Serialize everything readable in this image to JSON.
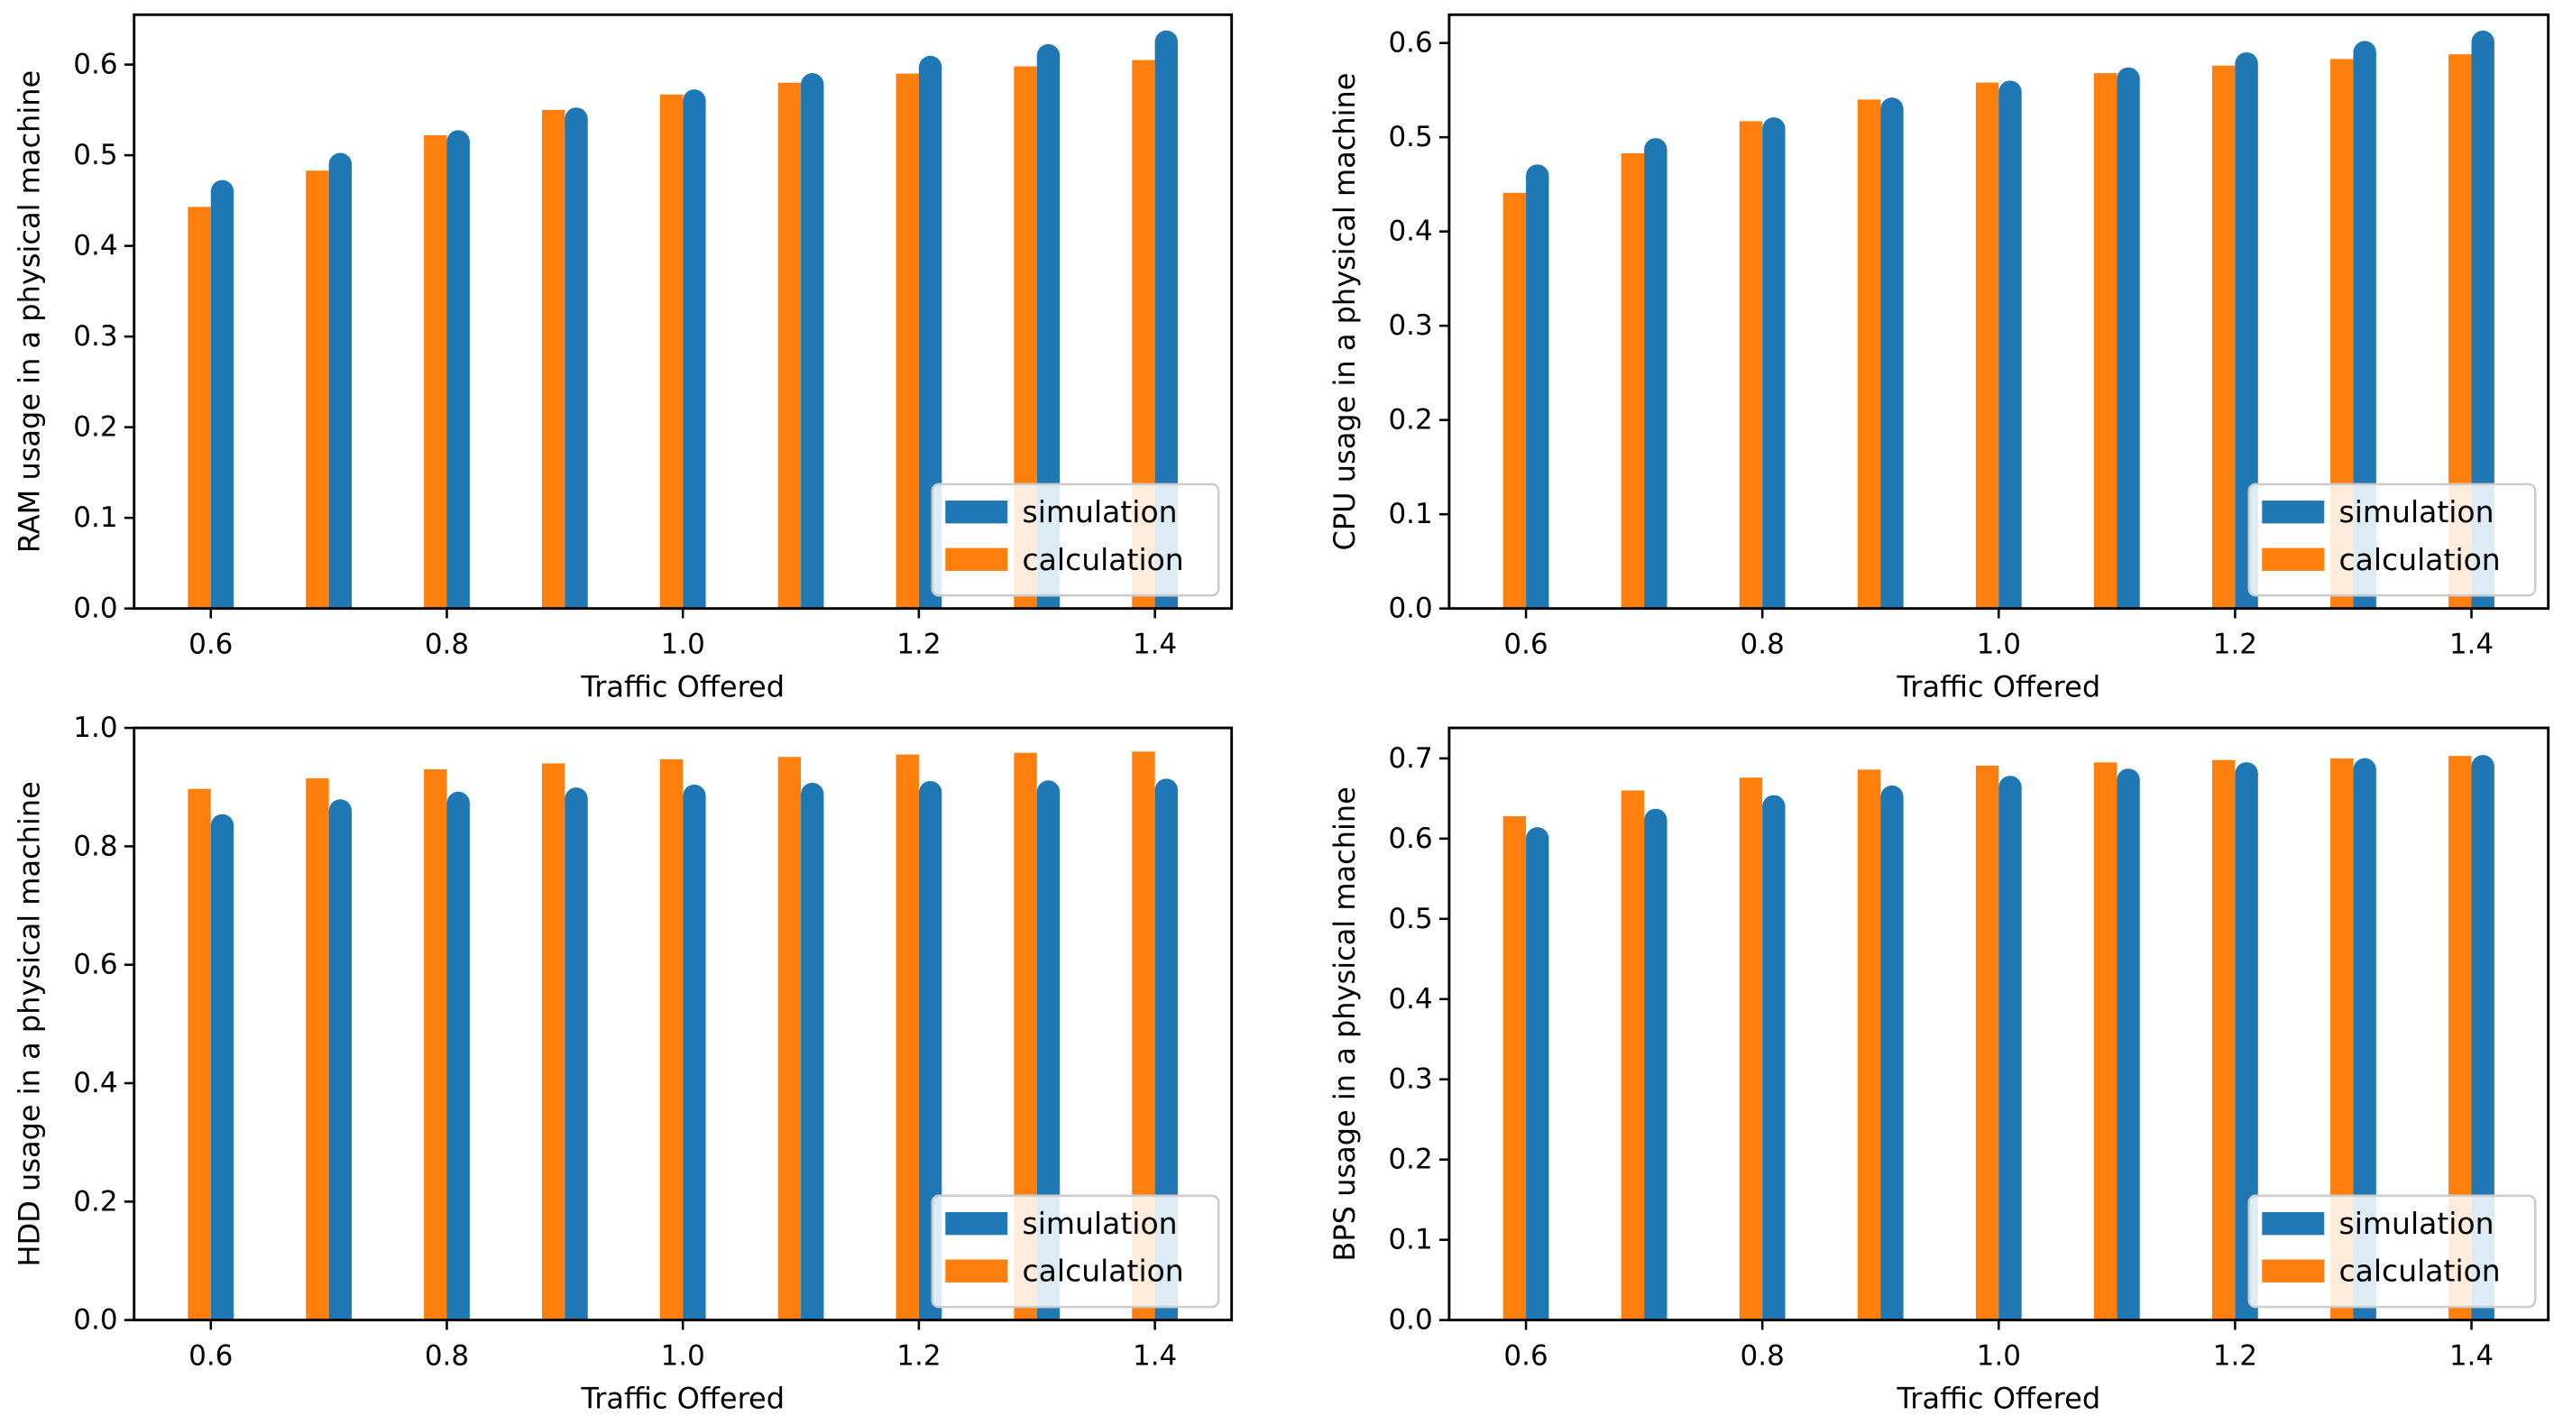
{
  "colors": {
    "simulation": "#1f77b4",
    "calculation": "#ff7f0e"
  },
  "chart_data": [
    {
      "type": "bar",
      "xlabel": "Traffic Offered",
      "ylabel": "RAM usage in a physical machine",
      "x": [
        0.6,
        0.7,
        0.8,
        0.9,
        1.0,
        1.1,
        1.2,
        1.3,
        1.4
      ],
      "x_ticks": [
        "0.6",
        "0.8",
        "1.0",
        "1.2",
        "1.4"
      ],
      "y_ticks": [
        "0.0",
        "0.1",
        "0.2",
        "0.3",
        "0.4",
        "0.5",
        "0.6"
      ],
      "xlim": [
        0.535,
        1.465
      ],
      "ylim": [
        0,
        0.655
      ],
      "grid": false,
      "legend_position": "lower-right",
      "series": [
        {
          "name": "simulation",
          "color": "#1f77b4",
          "values": [
            0.46,
            0.49,
            0.515,
            0.54,
            0.56,
            0.578,
            0.597,
            0.61,
            0.625
          ]
        },
        {
          "name": "calculation",
          "color": "#ff7f0e",
          "values": [
            0.443,
            0.483,
            0.522,
            0.55,
            0.567,
            0.58,
            0.59,
            0.598,
            0.605
          ]
        }
      ]
    },
    {
      "type": "bar",
      "xlabel": "Traffic Offered",
      "ylabel": "CPU usage in a physical machine",
      "x": [
        0.6,
        0.7,
        0.8,
        0.9,
        1.0,
        1.1,
        1.2,
        1.3,
        1.4
      ],
      "x_ticks": [
        "0.6",
        "0.8",
        "1.0",
        "1.2",
        "1.4"
      ],
      "y_ticks": [
        "0.0",
        "0.1",
        "0.2",
        "0.3",
        "0.4",
        "0.5",
        "0.6"
      ],
      "xlim": [
        0.535,
        1.465
      ],
      "ylim": [
        0,
        0.63
      ],
      "grid": false,
      "legend_position": "lower-right",
      "series": [
        {
          "name": "simulation",
          "color": "#1f77b4",
          "values": [
            0.459,
            0.487,
            0.509,
            0.53,
            0.548,
            0.562,
            0.578,
            0.59,
            0.601
          ]
        },
        {
          "name": "calculation",
          "color": "#ff7f0e",
          "values": [
            0.441,
            0.483,
            0.517,
            0.54,
            0.558,
            0.568,
            0.576,
            0.583,
            0.588
          ]
        }
      ]
    },
    {
      "type": "bar",
      "xlabel": "Traffic Offered",
      "ylabel": "HDD usage in a physical machine",
      "x": [
        0.6,
        0.7,
        0.8,
        0.9,
        1.0,
        1.1,
        1.2,
        1.3,
        1.4
      ],
      "x_ticks": [
        "0.6",
        "0.8",
        "1.0",
        "1.2",
        "1.4"
      ],
      "y_ticks": [
        "0.0",
        "0.2",
        "0.4",
        "0.6",
        "0.8",
        "1.0"
      ],
      "xlim": [
        0.535,
        1.465
      ],
      "ylim": [
        0,
        1.0
      ],
      "grid": false,
      "legend_position": "lower-right",
      "series": [
        {
          "name": "simulation",
          "color": "#1f77b4",
          "values": [
            0.835,
            0.86,
            0.873,
            0.88,
            0.885,
            0.888,
            0.891,
            0.892,
            0.895
          ]
        },
        {
          "name": "calculation",
          "color": "#ff7f0e",
          "values": [
            0.897,
            0.915,
            0.93,
            0.94,
            0.947,
            0.951,
            0.955,
            0.958,
            0.96
          ]
        }
      ]
    },
    {
      "type": "bar",
      "xlabel": "Traffic Offered",
      "ylabel": "BPS usage in a physical machine",
      "x": [
        0.6,
        0.7,
        0.8,
        0.9,
        1.0,
        1.1,
        1.2,
        1.3,
        1.4
      ],
      "x_ticks": [
        "0.6",
        "0.8",
        "1.0",
        "1.2",
        "1.4"
      ],
      "y_ticks": [
        "0.0",
        "0.1",
        "0.2",
        "0.3",
        "0.4",
        "0.5",
        "0.6",
        "0.7"
      ],
      "xlim": [
        0.535,
        1.465
      ],
      "ylim": [
        0,
        0.738
      ],
      "grid": false,
      "legend_position": "lower-right",
      "series": [
        {
          "name": "simulation",
          "color": "#1f77b4",
          "values": [
            0.6,
            0.623,
            0.64,
            0.652,
            0.664,
            0.673,
            0.681,
            0.686,
            0.69
          ]
        },
        {
          "name": "calculation",
          "color": "#ff7f0e",
          "values": [
            0.628,
            0.66,
            0.676,
            0.686,
            0.691,
            0.695,
            0.698,
            0.7,
            0.703
          ]
        }
      ]
    }
  ]
}
